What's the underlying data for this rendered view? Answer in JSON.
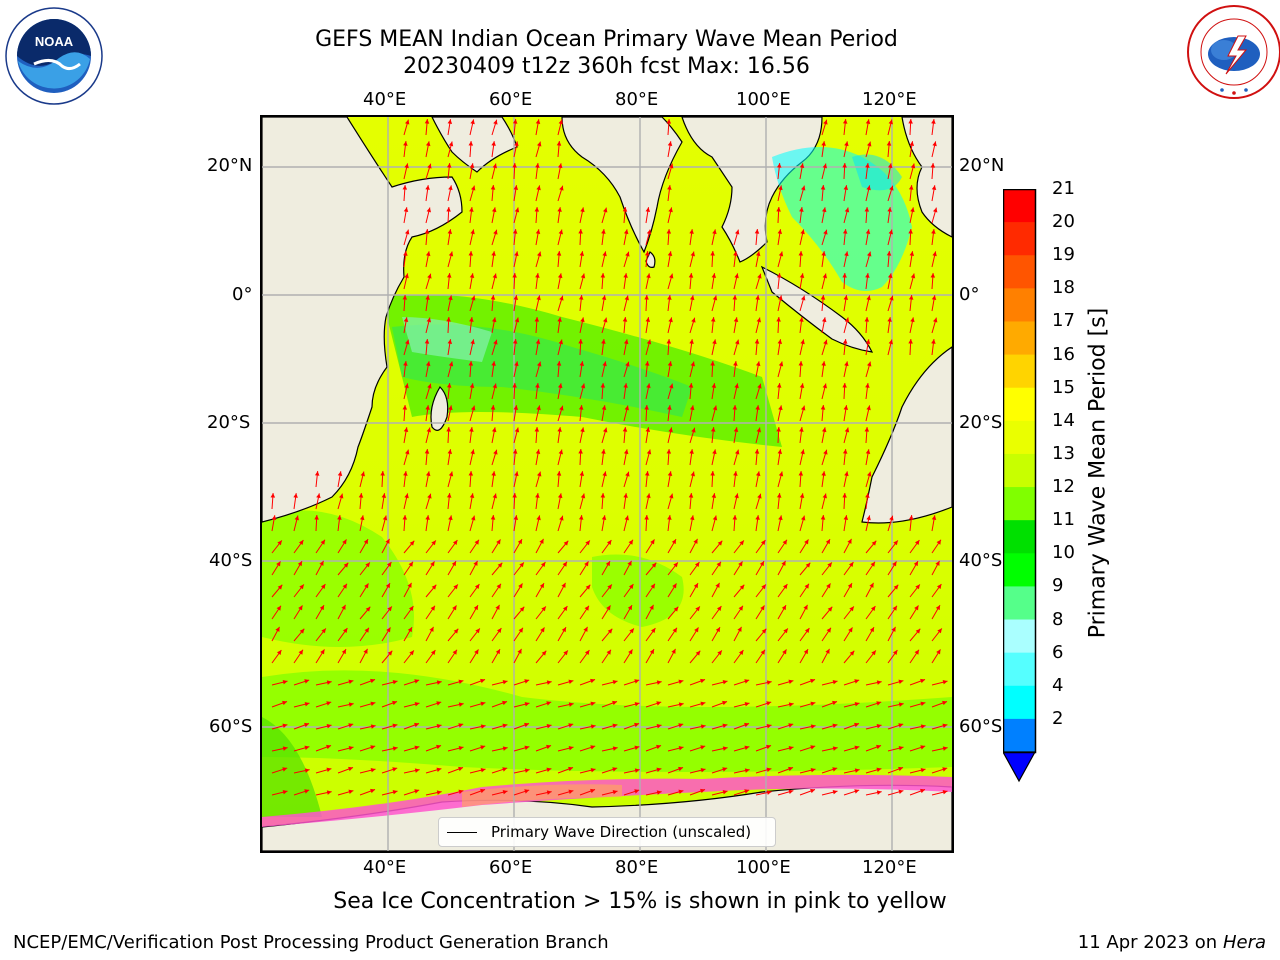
{
  "title_line1": "GEFS MEAN Indian Ocean Primary Wave Mean Period",
  "title_line2": "20230409 t12z 360h fcst   Max: 16.56",
  "logos": {
    "left": {
      "name": "noaa-logo",
      "text": "NOAA",
      "ring_text": "NATIONAL OCEANIC AND ATMOSPHERIC ADMINISTRATION · U.S. DEPARTMENT OF COMMERCE"
    },
    "right": {
      "name": "nws-logo",
      "ring_text": "NATIONAL WEATHER SERVICE"
    }
  },
  "map": {
    "lon_ticks": [
      "40°E",
      "60°E",
      "80°E",
      "100°E",
      "120°E"
    ],
    "lat_ticks": [
      "20°N",
      "0°",
      "20°S",
      "40°S",
      "60°S"
    ],
    "lon_range": [
      20,
      130
    ],
    "lat_range": [
      -75,
      28
    ],
    "arrow_color": "#ff0000",
    "land_color": "#efeddf"
  },
  "colorbar": {
    "title": "Primary Wave Mean Period [s]",
    "levels": [
      "21",
      "20",
      "19",
      "18",
      "17",
      "16",
      "15",
      "14",
      "13",
      "12",
      "11",
      "10",
      "9",
      "8",
      "6",
      "4",
      "2"
    ],
    "colors_top_to_bottom": [
      "#ff0000",
      "#ff2a00",
      "#ff5500",
      "#ff8000",
      "#ffaa00",
      "#ffd400",
      "#ffff00",
      "#eaff00",
      "#c8ff00",
      "#80ff00",
      "#00e000",
      "#00ff00",
      "#55ff8a",
      "#aaffff",
      "#55ffff",
      "#00ffff",
      "#0080ff"
    ],
    "extend_color": "#0000ff"
  },
  "legend": {
    "label": "Primary Wave Direction (unscaled)"
  },
  "subtitle": "Sea Ice Concentration > 15% is shown in pink to yellow",
  "footer": {
    "left": "NCEP/EMC/Verification Post Processing Product Generation Branch",
    "right_date": "11 Apr 2023 on ",
    "right_host": "Hera"
  }
}
